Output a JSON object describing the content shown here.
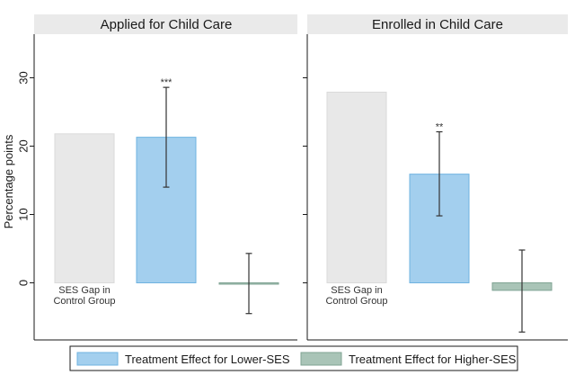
{
  "chart_data": {
    "type": "bar",
    "ylabel": "Percentage points",
    "ylim": [
      -8,
      36
    ],
    "yticks": [
      0,
      10,
      20,
      30
    ],
    "categories": [
      "SES Gap in Control Group",
      "Treatment Effect for Lower-SES",
      "Treatment Effect for Higher-SES"
    ],
    "category_label_lines": [
      "SES Gap in",
      "Control Group"
    ],
    "panels": [
      {
        "title": "Applied for Child Care",
        "bars": [
          {
            "series": "SES Gap in Control Group",
            "value": 21.8,
            "ci": null,
            "sig": ""
          },
          {
            "series": "Treatment Effect for Lower-SES",
            "value": 21.3,
            "ci": [
              14.0,
              28.6
            ],
            "sig": "***"
          },
          {
            "series": "Treatment Effect for Higher-SES",
            "value": -0.1,
            "ci": [
              -4.5,
              4.3
            ],
            "sig": ""
          }
        ]
      },
      {
        "title": "Enrolled in Child Care",
        "bars": [
          {
            "series": "SES Gap in Control Group",
            "value": 27.9,
            "ci": null,
            "sig": ""
          },
          {
            "series": "Treatment Effect for Lower-SES",
            "value": 15.9,
            "ci": [
              9.8,
              22.1
            ],
            "sig": "**"
          },
          {
            "series": "Treatment Effect for Higher-SES",
            "value": -1.1,
            "ci": [
              -7.2,
              4.8
            ],
            "sig": ""
          }
        ]
      }
    ],
    "legend": [
      {
        "label": "Treatment Effect for Lower-SES",
        "color": "#a3cfee",
        "stroke": "#6fb3e0"
      },
      {
        "label": "Treatment Effect for Higher-SES",
        "color": "#a9c4b7",
        "stroke": "#7fa393"
      }
    ],
    "colors": {
      "SES Gap in Control Group": {
        "fill": "#e8e8e8",
        "stroke": "#dadada"
      },
      "Treatment Effect for Lower-SES": {
        "fill": "#a3cfee",
        "stroke": "#6fb3e0"
      },
      "Treatment Effect for Higher-SES": {
        "fill": "#a9c4b7",
        "stroke": "#7fa393"
      }
    }
  }
}
